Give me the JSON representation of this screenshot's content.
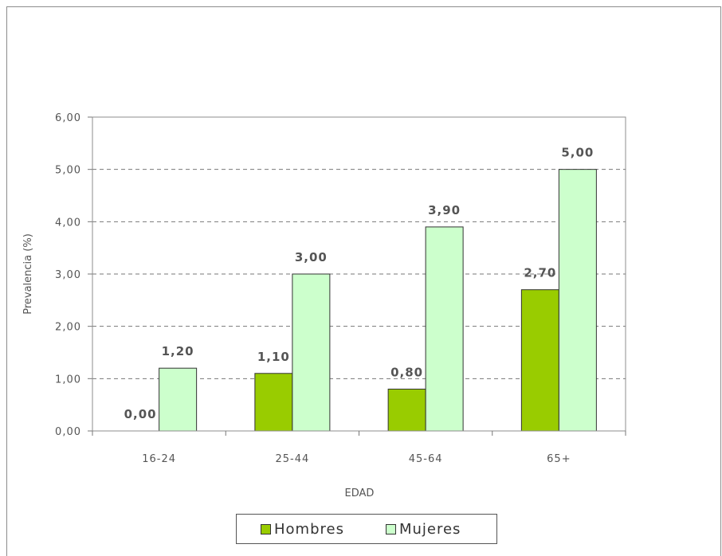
{
  "chart_data": {
    "type": "bar",
    "title": "",
    "xlabel": "EDAD",
    "ylabel": "Prevalencia (%)",
    "categories": [
      "16-24",
      "25-44",
      "45-64",
      "65+"
    ],
    "ylim": [
      0,
      6
    ],
    "yticks": [
      "0,00",
      "1,00",
      "2,00",
      "3,00",
      "4,00",
      "5,00",
      "6,00"
    ],
    "grid": "horizontal dashed",
    "legend_position": "bottom",
    "series": [
      {
        "name": "Hombres",
        "values": [
          0.0,
          1.1,
          0.8,
          2.7
        ],
        "labels": [
          "0,00",
          "1,10",
          "0,80",
          "2,70"
        ],
        "color": "#99cc00"
      },
      {
        "name": "Mujeres",
        "values": [
          1.2,
          3.0,
          3.9,
          5.0
        ],
        "labels": [
          "1,20",
          "3,00",
          "3,90",
          "5,00"
        ],
        "color": "#ccffcc"
      }
    ]
  }
}
